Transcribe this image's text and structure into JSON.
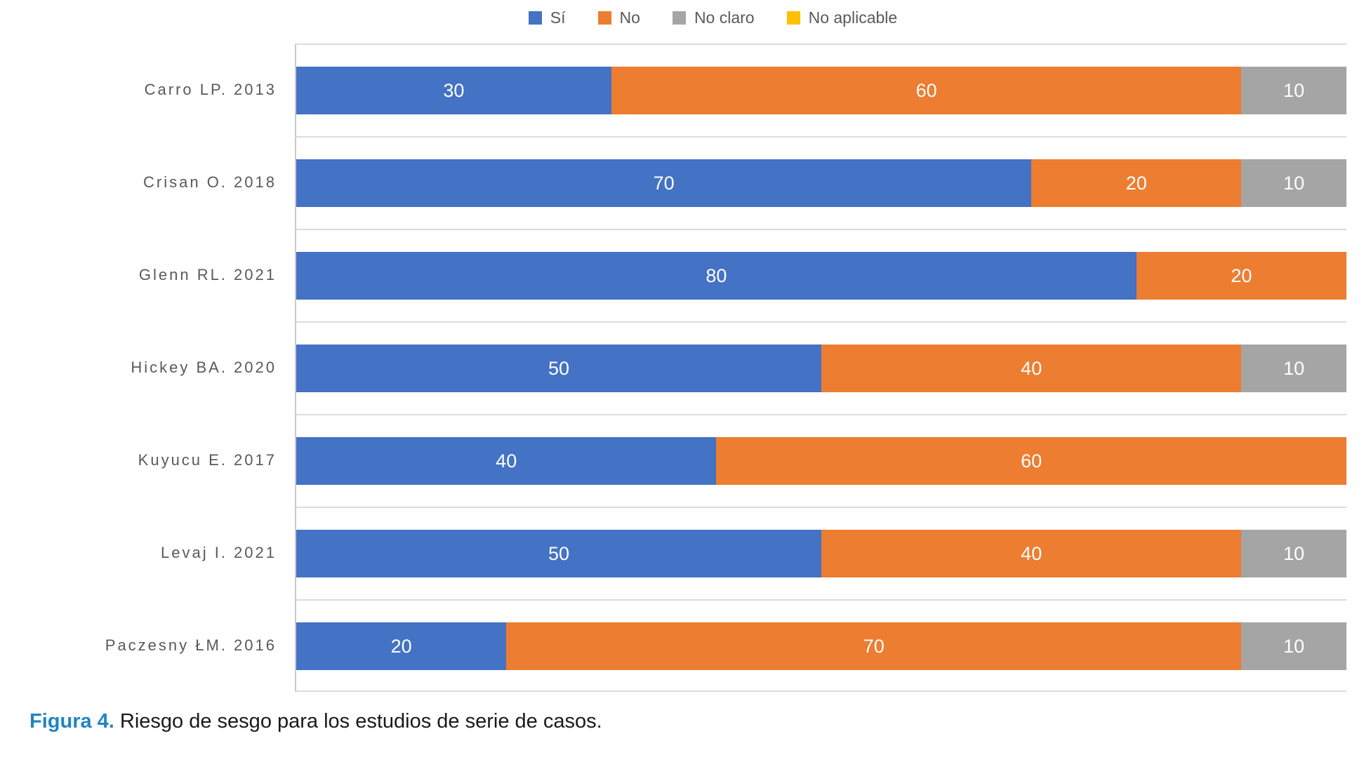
{
  "legend": {
    "items": [
      {
        "label": "Sí",
        "color": "#4472C4"
      },
      {
        "label": "No",
        "color": "#ED7D31"
      },
      {
        "label": "No claro",
        "color": "#A5A5A5"
      },
      {
        "label": "No aplicable",
        "color": "#FFC000"
      }
    ]
  },
  "chart_data": {
    "type": "bar",
    "orientation": "horizontal",
    "stacked": true,
    "x_max": 100,
    "grid": "category-separators",
    "legend_position": "top-center",
    "value_labels": "inside-white",
    "categories": [
      "Carro LP. 2013",
      "Crisan O. 2018",
      "Glenn RL. 2021",
      "Hickey BA. 2020",
      "Kuyucu E. 2017",
      "Levaj I. 2021",
      "Paczesny ŁM. 2016"
    ],
    "series": [
      {
        "name": "Sí",
        "values": [
          30,
          70,
          80,
          50,
          40,
          50,
          20
        ]
      },
      {
        "name": "No",
        "values": [
          60,
          20,
          20,
          40,
          60,
          40,
          70
        ]
      },
      {
        "name": "No claro",
        "values": [
          10,
          10,
          0,
          10,
          0,
          10,
          10
        ]
      },
      {
        "name": "No aplicable",
        "values": [
          0,
          0,
          0,
          0,
          0,
          0,
          0
        ]
      }
    ],
    "series_colors": {
      "Sí": "#4472C4",
      "No": "#ED7D31",
      "No claro": "#A5A5A5",
      "No aplicable": "#FFC000"
    }
  },
  "caption": {
    "prefix": "Figura 4.",
    "text": " Riesgo de sesgo para los estudios de serie de casos."
  }
}
